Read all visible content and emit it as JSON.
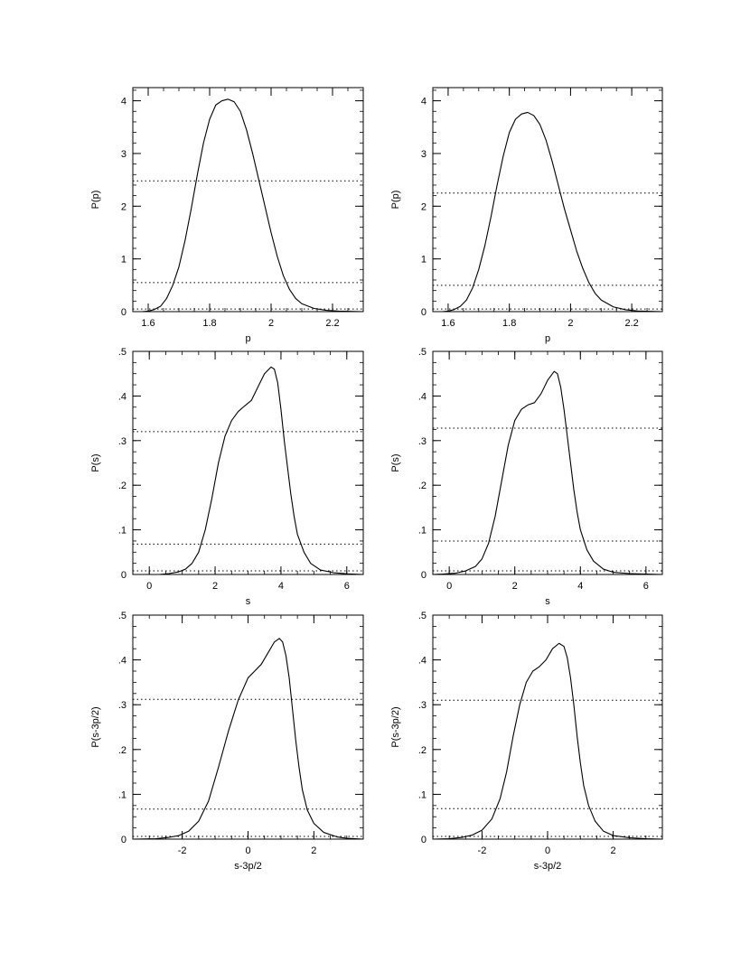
{
  "chart_data": [
    {
      "type": "line",
      "xlabel": "p",
      "ylabel": "P(p)",
      "xlim": [
        1.55,
        2.3
      ],
      "ylim": [
        0,
        4.25
      ],
      "xticks": [
        1.6,
        1.8,
        2.0,
        2.2
      ],
      "xtick_labels": [
        "1.6",
        "1.8",
        "2",
        "2.2"
      ],
      "yticks": [
        0,
        1,
        2,
        3,
        4
      ],
      "ytick_labels": [
        "0",
        "1",
        "2",
        "3",
        "4"
      ],
      "minor_x": 0.05,
      "minor_y": 0.2,
      "series": [
        {
          "points": [
            [
              1.55,
              0.0
            ],
            [
              1.58,
              0.0
            ],
            [
              1.6,
              0.01
            ],
            [
              1.62,
              0.04
            ],
            [
              1.64,
              0.1
            ],
            [
              1.66,
              0.25
            ],
            [
              1.68,
              0.5
            ],
            [
              1.7,
              0.85
            ],
            [
              1.72,
              1.35
            ],
            [
              1.74,
              1.95
            ],
            [
              1.76,
              2.6
            ],
            [
              1.78,
              3.2
            ],
            [
              1.8,
              3.65
            ],
            [
              1.82,
              3.92
            ],
            [
              1.84,
              4.0
            ],
            [
              1.86,
              4.03
            ],
            [
              1.88,
              3.98
            ],
            [
              1.9,
              3.8
            ],
            [
              1.92,
              3.45
            ],
            [
              1.94,
              3.0
            ],
            [
              1.96,
              2.5
            ],
            [
              1.98,
              2.0
            ],
            [
              2.0,
              1.5
            ],
            [
              2.02,
              1.05
            ],
            [
              2.04,
              0.68
            ],
            [
              2.06,
              0.42
            ],
            [
              2.08,
              0.25
            ],
            [
              2.1,
              0.15
            ],
            [
              2.14,
              0.06
            ],
            [
              2.18,
              0.025
            ],
            [
              2.22,
              0.01
            ],
            [
              2.3,
              0.0
            ]
          ]
        }
      ],
      "reference_lines": [
        2.48,
        0.55,
        0.05
      ]
    },
    {
      "type": "line",
      "xlabel": "p",
      "ylabel": "P(p)",
      "xlim": [
        1.55,
        2.3
      ],
      "ylim": [
        0,
        4.25
      ],
      "xticks": [
        1.6,
        1.8,
        2.0,
        2.2
      ],
      "xtick_labels": [
        "1.6",
        "1.8",
        "2",
        "2.2"
      ],
      "yticks": [
        0,
        1,
        2,
        3,
        4
      ],
      "ytick_labels": [
        "0",
        "1",
        "2",
        "3",
        "4"
      ],
      "minor_x": 0.05,
      "minor_y": 0.2,
      "series": [
        {
          "points": [
            [
              1.55,
              0.0
            ],
            [
              1.58,
              0.0
            ],
            [
              1.6,
              0.01
            ],
            [
              1.62,
              0.04
            ],
            [
              1.64,
              0.1
            ],
            [
              1.66,
              0.22
            ],
            [
              1.68,
              0.45
            ],
            [
              1.7,
              0.8
            ],
            [
              1.72,
              1.25
            ],
            [
              1.74,
              1.8
            ],
            [
              1.76,
              2.4
            ],
            [
              1.78,
              2.95
            ],
            [
              1.8,
              3.4
            ],
            [
              1.82,
              3.65
            ],
            [
              1.84,
              3.75
            ],
            [
              1.86,
              3.78
            ],
            [
              1.88,
              3.72
            ],
            [
              1.9,
              3.55
            ],
            [
              1.92,
              3.25
            ],
            [
              1.94,
              2.85
            ],
            [
              1.96,
              2.4
            ],
            [
              1.98,
              1.95
            ],
            [
              2.0,
              1.55
            ],
            [
              2.02,
              1.15
            ],
            [
              2.04,
              0.82
            ],
            [
              2.06,
              0.55
            ],
            [
              2.08,
              0.35
            ],
            [
              2.1,
              0.22
            ],
            [
              2.14,
              0.09
            ],
            [
              2.18,
              0.035
            ],
            [
              2.22,
              0.012
            ],
            [
              2.3,
              0.0
            ]
          ]
        }
      ],
      "reference_lines": [
        2.25,
        0.5,
        0.05
      ]
    },
    {
      "type": "line",
      "xlabel": "s",
      "ylabel": "P(s)",
      "xlim": [
        -0.5,
        6.5
      ],
      "ylim": [
        0,
        0.5
      ],
      "xticks": [
        0,
        2,
        4,
        6
      ],
      "xtick_labels": [
        "0",
        "2",
        "4",
        "6"
      ],
      "yticks": [
        0,
        0.1,
        0.2,
        0.3,
        0.4,
        0.5
      ],
      "ytick_labels": [
        "0",
        ".1",
        ".2",
        ".3",
        ".4",
        ".5"
      ],
      "minor_x": 0.5,
      "minor_y": 0.025,
      "series": [
        {
          "points": [
            [
              -0.5,
              0.0
            ],
            [
              0.3,
              0.0
            ],
            [
              0.6,
              0.002
            ],
            [
              0.9,
              0.006
            ],
            [
              1.1,
              0.012
            ],
            [
              1.3,
              0.025
            ],
            [
              1.5,
              0.05
            ],
            [
              1.7,
              0.1
            ],
            [
              1.9,
              0.17
            ],
            [
              2.1,
              0.25
            ],
            [
              2.3,
              0.31
            ],
            [
              2.5,
              0.345
            ],
            [
              2.7,
              0.365
            ],
            [
              2.9,
              0.378
            ],
            [
              3.1,
              0.39
            ],
            [
              3.3,
              0.42
            ],
            [
              3.5,
              0.45
            ],
            [
              3.7,
              0.465
            ],
            [
              3.8,
              0.46
            ],
            [
              3.9,
              0.43
            ],
            [
              4.0,
              0.37
            ],
            [
              4.1,
              0.3
            ],
            [
              4.2,
              0.24
            ],
            [
              4.3,
              0.18
            ],
            [
              4.4,
              0.13
            ],
            [
              4.5,
              0.09
            ],
            [
              4.7,
              0.05
            ],
            [
              4.9,
              0.025
            ],
            [
              5.2,
              0.01
            ],
            [
              5.6,
              0.004
            ],
            [
              6.0,
              0.0015
            ],
            [
              6.5,
              0.0
            ]
          ]
        }
      ],
      "reference_lines": [
        0.32,
        0.068,
        0.008
      ]
    },
    {
      "type": "line",
      "xlabel": "s",
      "ylabel": "P(s)",
      "xlim": [
        -0.5,
        6.5
      ],
      "ylim": [
        0,
        0.5
      ],
      "xticks": [
        0,
        2,
        4,
        6
      ],
      "xtick_labels": [
        "0",
        "2",
        "4",
        "6"
      ],
      "yticks": [
        0,
        0.1,
        0.2,
        0.3,
        0.4,
        0.5
      ],
      "ytick_labels": [
        "0",
        ".1",
        ".2",
        ".3",
        ".4",
        ".5"
      ],
      "minor_x": 0.5,
      "minor_y": 0.025,
      "series": [
        {
          "points": [
            [
              -0.5,
              0.0
            ],
            [
              -0.2,
              0.001
            ],
            [
              0.2,
              0.003
            ],
            [
              0.5,
              0.008
            ],
            [
              0.8,
              0.018
            ],
            [
              1.0,
              0.035
            ],
            [
              1.2,
              0.07
            ],
            [
              1.4,
              0.13
            ],
            [
              1.6,
              0.21
            ],
            [
              1.8,
              0.29
            ],
            [
              2.0,
              0.345
            ],
            [
              2.2,
              0.37
            ],
            [
              2.4,
              0.38
            ],
            [
              2.6,
              0.385
            ],
            [
              2.8,
              0.405
            ],
            [
              3.0,
              0.435
            ],
            [
              3.2,
              0.455
            ],
            [
              3.3,
              0.45
            ],
            [
              3.4,
              0.42
            ],
            [
              3.5,
              0.37
            ],
            [
              3.6,
              0.31
            ],
            [
              3.7,
              0.25
            ],
            [
              3.8,
              0.19
            ],
            [
              3.9,
              0.14
            ],
            [
              4.0,
              0.1
            ],
            [
              4.2,
              0.055
            ],
            [
              4.4,
              0.03
            ],
            [
              4.7,
              0.012
            ],
            [
              5.0,
              0.005
            ],
            [
              5.5,
              0.002
            ],
            [
              6.5,
              0.0
            ]
          ]
        }
      ],
      "reference_lines": [
        0.328,
        0.075,
        0.008
      ]
    },
    {
      "type": "line",
      "xlabel": "s-3p/2",
      "ylabel": "P(s-3p/2)",
      "xlim": [
        -3.5,
        3.5
      ],
      "ylim": [
        0,
        0.5
      ],
      "xticks": [
        -2,
        0,
        2
      ],
      "xtick_labels": [
        "-2",
        "0",
        "2"
      ],
      "yticks": [
        0,
        0.1,
        0.2,
        0.3,
        0.4,
        0.5
      ],
      "ytick_labels": [
        "0",
        ".1",
        ".2",
        ".3",
        ".4",
        ".5"
      ],
      "minor_x": 0.5,
      "minor_y": 0.025,
      "series": [
        {
          "points": [
            [
              -3.5,
              0.0
            ],
            [
              -2.8,
              0.001
            ],
            [
              -2.4,
              0.004
            ],
            [
              -2.1,
              0.008
            ],
            [
              -1.8,
              0.018
            ],
            [
              -1.5,
              0.04
            ],
            [
              -1.2,
              0.085
            ],
            [
              -0.9,
              0.16
            ],
            [
              -0.6,
              0.24
            ],
            [
              -0.3,
              0.31
            ],
            [
              0.0,
              0.36
            ],
            [
              0.2,
              0.375
            ],
            [
              0.4,
              0.39
            ],
            [
              0.6,
              0.415
            ],
            [
              0.8,
              0.44
            ],
            [
              0.95,
              0.448
            ],
            [
              1.05,
              0.44
            ],
            [
              1.15,
              0.41
            ],
            [
              1.25,
              0.36
            ],
            [
              1.35,
              0.29
            ],
            [
              1.45,
              0.22
            ],
            [
              1.55,
              0.16
            ],
            [
              1.65,
              0.11
            ],
            [
              1.8,
              0.065
            ],
            [
              2.0,
              0.035
            ],
            [
              2.3,
              0.015
            ],
            [
              2.7,
              0.005
            ],
            [
              3.0,
              0.002
            ],
            [
              3.5,
              0.0
            ]
          ]
        }
      ],
      "reference_lines": [
        0.312,
        0.067,
        0.006
      ]
    },
    {
      "type": "line",
      "xlabel": "s-3p/2",
      "ylabel": "P(s-3p/2)",
      "xlim": [
        -3.5,
        3.5
      ],
      "ylim": [
        0,
        0.5
      ],
      "xticks": [
        -2,
        0,
        2
      ],
      "xtick_labels": [
        "-2",
        "0",
        "2"
      ],
      "yticks": [
        0,
        0.1,
        0.2,
        0.3,
        0.4,
        0.5
      ],
      "ytick_labels": [
        "0",
        ".1",
        ".2",
        ".3",
        ".4",
        ".5"
      ],
      "minor_x": 0.5,
      "minor_y": 0.025,
      "series": [
        {
          "points": [
            [
              -3.5,
              0.0
            ],
            [
              -3.0,
              0.001
            ],
            [
              -2.6,
              0.004
            ],
            [
              -2.3,
              0.009
            ],
            [
              -2.0,
              0.02
            ],
            [
              -1.7,
              0.045
            ],
            [
              -1.45,
              0.09
            ],
            [
              -1.25,
              0.15
            ],
            [
              -1.05,
              0.23
            ],
            [
              -0.85,
              0.3
            ],
            [
              -0.65,
              0.35
            ],
            [
              -0.45,
              0.375
            ],
            [
              -0.25,
              0.385
            ],
            [
              -0.05,
              0.4
            ],
            [
              0.15,
              0.425
            ],
            [
              0.35,
              0.437
            ],
            [
              0.5,
              0.43
            ],
            [
              0.6,
              0.405
            ],
            [
              0.7,
              0.36
            ],
            [
              0.8,
              0.3
            ],
            [
              0.9,
              0.23
            ],
            [
              1.0,
              0.17
            ],
            [
              1.1,
              0.12
            ],
            [
              1.25,
              0.075
            ],
            [
              1.45,
              0.04
            ],
            [
              1.7,
              0.018
            ],
            [
              2.0,
              0.008
            ],
            [
              2.5,
              0.003
            ],
            [
              3.0,
              0.001
            ],
            [
              3.5,
              0.0
            ]
          ]
        }
      ],
      "reference_lines": [
        0.31,
        0.068,
        0.006
      ]
    }
  ]
}
